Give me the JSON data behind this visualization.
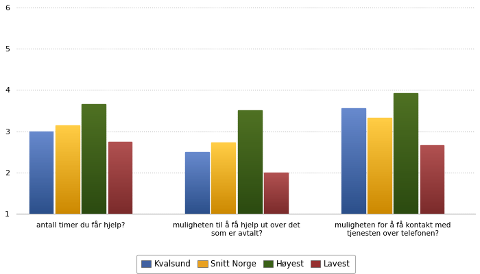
{
  "categories": [
    "antall timer du får hjelp?",
    "muligheten til å få hjelp ut over det\nsom er avtalt?",
    "muligheten for å få kontakt med\ntjenesten over telefonen?"
  ],
  "series": {
    "Kvalsund": [
      3.0,
      2.5,
      3.55
    ],
    "Snitt Norge": [
      3.15,
      2.72,
      3.33
    ],
    "Høyest": [
      3.65,
      3.5,
      3.92
    ],
    "Lavest": [
      2.75,
      2.0,
      2.66
    ]
  },
  "colors_top": {
    "Kvalsund": "#6688CC",
    "Snitt Norge": "#FFCC44",
    "Høyest": "#4E7022",
    "Lavest": "#B05050"
  },
  "colors_bottom": {
    "Kvalsund": "#2B4F8A",
    "Snitt Norge": "#CC8800",
    "Høyest": "#2B4A10",
    "Lavest": "#7A2A2A"
  },
  "legend_colors": {
    "Kvalsund": "#4060A0",
    "Snitt Norge": "#E8A020",
    "Høyest": "#3A6018",
    "Lavest": "#963030"
  },
  "ylim": [
    1,
    6
  ],
  "yticks": [
    1,
    2,
    3,
    4,
    5,
    6
  ],
  "background_color": "#ffffff",
  "grid_color": "#bbbbbb",
  "bar_width": 0.13,
  "figsize": [
    7.0,
    4.0
  ],
  "dpi": 100
}
